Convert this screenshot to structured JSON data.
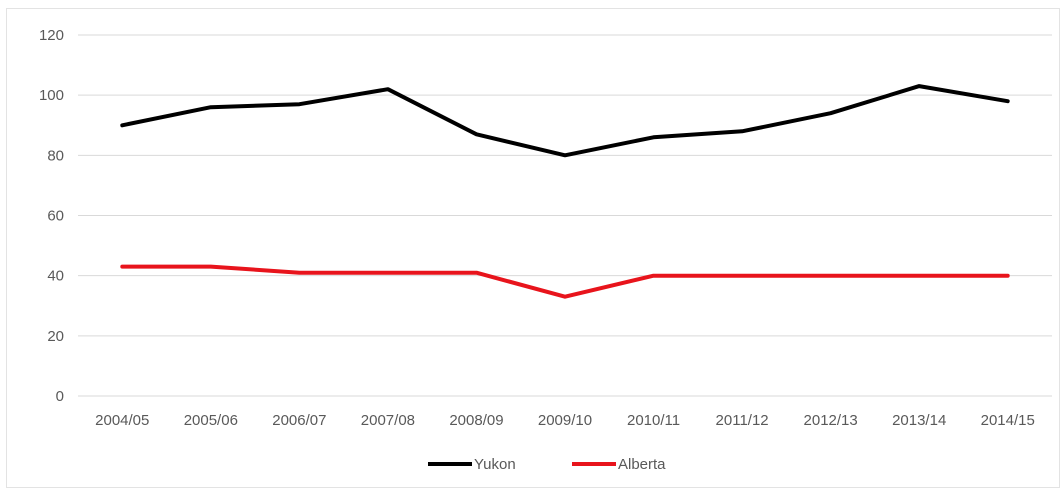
{
  "chart_data": {
    "type": "line",
    "categories": [
      "2004/05",
      "2005/06",
      "2006/07",
      "2007/08",
      "2008/09",
      "2009/10",
      "2010/11",
      "2011/12",
      "2012/13",
      "2013/14",
      "2014/15"
    ],
    "series": [
      {
        "name": "Yukon",
        "color": "#000000",
        "values": [
          90,
          96,
          97,
          102,
          87,
          80,
          86,
          88,
          94,
          103,
          98
        ]
      },
      {
        "name": "Alberta",
        "color": "#e8141c",
        "values": [
          43,
          43,
          41,
          41,
          41,
          33,
          40,
          40,
          40,
          40,
          40
        ]
      }
    ],
    "ylim": [
      0,
      120
    ],
    "yticks": [
      "0",
      "20",
      "40",
      "60",
      "80",
      "100",
      "120"
    ],
    "grid": true,
    "legend_position": "bottom"
  }
}
